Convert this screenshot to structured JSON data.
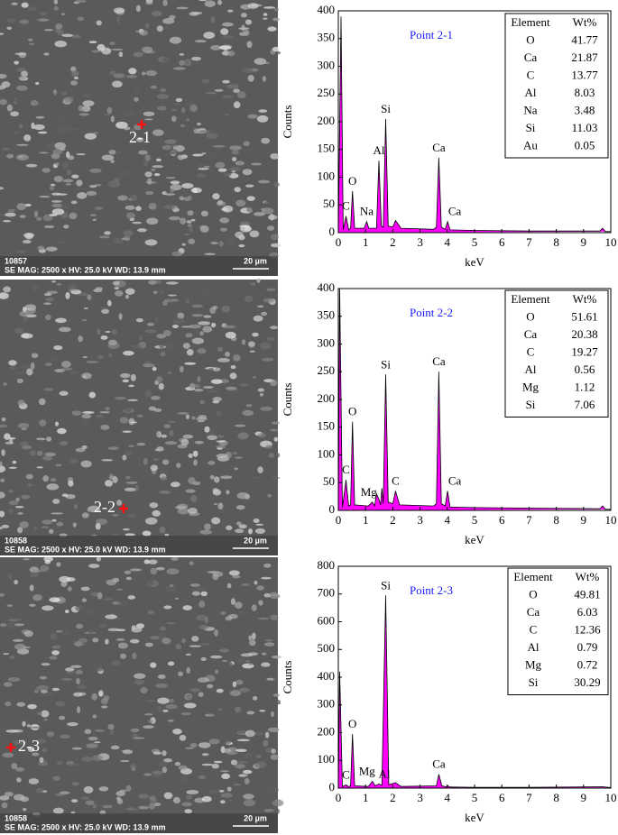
{
  "images": [
    {
      "id": "10857",
      "info": "SE  MAG: 2500 x HV: 25.0 kV  WD: 13.9 mm",
      "scale": "20 µm",
      "point": "2-1"
    },
    {
      "id": "10858",
      "info": "SE  MAG: 2500 x HV: 25.0 kV  WD: 13.9 mm",
      "scale": "20 µm",
      "point": "2-2"
    },
    {
      "id": "10858",
      "info": "SE  MAG: 2500 x HV: 25.0 kV  WD: 13.9 mm",
      "scale": "20 µm",
      "point": "2-3"
    }
  ],
  "chart_data": [
    {
      "type": "line",
      "title": "Point 2-1",
      "x_label": "keV",
      "y_label": "Counts",
      "xlim": [
        0,
        10
      ],
      "xticks": [
        0,
        1,
        2,
        3,
        4,
        5,
        6,
        7,
        8,
        9,
        10
      ],
      "ylim": [
        0,
        400
      ],
      "yticks": [
        0,
        50,
        100,
        150,
        200,
        250,
        300,
        350,
        400
      ],
      "x": [
        0,
        0.1,
        0.18,
        0.28,
        0.38,
        0.45,
        0.52,
        0.6,
        0.95,
        1.04,
        1.12,
        1.4,
        1.49,
        1.58,
        1.65,
        1.74,
        1.83,
        2.0,
        2.1,
        2.3,
        3.5,
        3.6,
        3.69,
        3.78,
        3.92,
        4.01,
        4.1,
        5,
        7,
        9.6,
        9.7,
        9.8,
        10
      ],
      "series": [
        {
          "color": "#ff00ff",
          "values": [
            0,
            390,
            5,
            30,
            5,
            8,
            75,
            8,
            8,
            20,
            8,
            8,
            130,
            12,
            10,
            205,
            12,
            10,
            22,
            8,
            6,
            10,
            135,
            10,
            6,
            20,
            5,
            4,
            3,
            3,
            8,
            2,
            2
          ]
        }
      ],
      "annotations": [
        "C",
        "O",
        "Na",
        "Al",
        "Si",
        "Ca",
        "Ca"
      ],
      "table": {
        "header": [
          "Element",
          "Wt%"
        ],
        "rows": [
          [
            "O",
            41.77
          ],
          [
            "Ca",
            21.87
          ],
          [
            "C",
            13.77
          ],
          [
            "Al",
            8.03
          ],
          [
            "Na",
            3.48
          ],
          [
            "Si",
            11.03
          ],
          [
            "Au",
            0.05
          ]
        ]
      }
    },
    {
      "type": "line",
      "title": "Point 2-2",
      "x_label": "keV",
      "y_label": "Counts",
      "xlim": [
        0,
        10
      ],
      "xticks": [
        0,
        1,
        2,
        3,
        4,
        5,
        6,
        7,
        8,
        9,
        10
      ],
      "ylim": [
        0,
        400
      ],
      "yticks": [
        0,
        50,
        100,
        150,
        200,
        250,
        300,
        350,
        400
      ],
      "x": [
        0,
        0.05,
        0.15,
        0.28,
        0.38,
        0.45,
        0.52,
        0.6,
        1.1,
        1.25,
        1.33,
        1.4,
        1.49,
        1.55,
        1.6,
        1.65,
        1.74,
        1.83,
        2.0,
        2.1,
        2.25,
        3.5,
        3.6,
        3.69,
        3.78,
        3.92,
        4.01,
        4.1,
        5,
        7,
        9.6,
        9.7,
        9.8,
        10
      ],
      "series": [
        {
          "color": "#ff00ff",
          "values": [
            0,
            400,
            5,
            55,
            8,
            10,
            160,
            10,
            8,
            15,
            8,
            30,
            20,
            10,
            40,
            12,
            245,
            15,
            12,
            35,
            10,
            8,
            12,
            250,
            12,
            8,
            35,
            6,
            5,
            4,
            3,
            8,
            2,
            2
          ]
        }
      ],
      "annotations": [
        "C",
        "O",
        "Mg",
        "Si",
        "C",
        "Ca",
        "Ca"
      ],
      "table": {
        "header": [
          "Element",
          "Wt%"
        ],
        "rows": [
          [
            "O",
            51.61
          ],
          [
            "Ca",
            20.38
          ],
          [
            "C",
            19.27
          ],
          [
            "Al",
            0.56
          ],
          [
            "Mg",
            1.12
          ],
          [
            "Si",
            7.06
          ]
        ]
      }
    },
    {
      "type": "line",
      "title": "Point 2-3",
      "x_label": "keV",
      "y_label": "Counts",
      "xlim": [
        0,
        10
      ],
      "xticks": [
        0,
        1,
        2,
        3,
        4,
        5,
        6,
        7,
        8,
        9,
        10
      ],
      "ylim": [
        0,
        800
      ],
      "yticks": [
        0,
        100,
        200,
        300,
        400,
        500,
        600,
        700,
        800
      ],
      "x": [
        0,
        0.05,
        0.15,
        0.28,
        0.38,
        0.45,
        0.52,
        0.6,
        1.1,
        1.25,
        1.35,
        1.49,
        1.6,
        1.74,
        1.85,
        2.1,
        2.3,
        3.6,
        3.69,
        3.8,
        3.95,
        4.01,
        4.1,
        5,
        7,
        9.7,
        10
      ],
      "series": [
        {
          "color": "#ff00ff",
          "values": [
            0,
            420,
            5,
            12,
            5,
            8,
            195,
            8,
            6,
            25,
            8,
            15,
            10,
            695,
            12,
            20,
            6,
            8,
            50,
            8,
            5,
            8,
            4,
            3,
            3,
            5,
            2
          ]
        }
      ],
      "annotations": [
        "C",
        "O",
        "Mg",
        "Al",
        "Si",
        "Ca"
      ],
      "table": {
        "header": [
          "Element",
          "Wt%"
        ],
        "rows": [
          [
            "O",
            49.81
          ],
          [
            "Ca",
            6.03
          ],
          [
            "C",
            12.36
          ],
          [
            "Al",
            0.79
          ],
          [
            "Mg",
            0.72
          ],
          [
            "Si",
            30.29
          ]
        ]
      }
    }
  ]
}
